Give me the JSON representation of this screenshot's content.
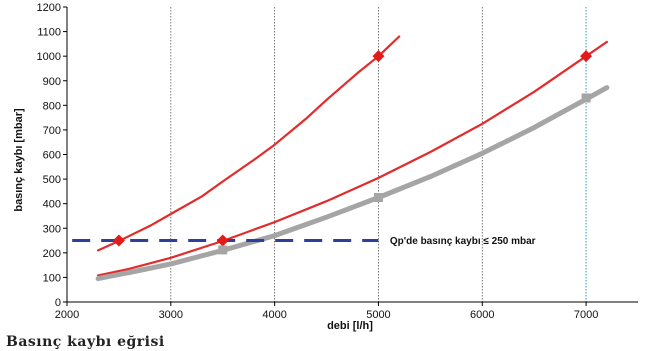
{
  "chart_data": {
    "type": "line",
    "xlabel": "debi [l/h]",
    "ylabel": "basınç kaybı [mbar]",
    "xlim": [
      2000,
      7500
    ],
    "ylim": [
      0,
      1200
    ],
    "xticks": [
      2000,
      3000,
      4000,
      5000,
      6000,
      7000
    ],
    "yticks": [
      0,
      100,
      200,
      300,
      400,
      500,
      600,
      700,
      800,
      900,
      1000,
      1100,
      1200
    ],
    "grid": {
      "vertical": true,
      "horizontal": false
    },
    "colors": {
      "red": "#e32b2b",
      "gray": "#a5a5a5",
      "blue": "#2c3f9a",
      "marker": "#e31a1a",
      "vline": "#3a9bc7"
    },
    "series": [
      {
        "color": "red",
        "x": [
          2300,
          2500,
          2800,
          3000,
          3300,
          3500,
          3800,
          4000,
          4300,
          4500,
          4800,
          5000,
          5200
        ],
        "y": [
          210,
          248,
          310,
          358,
          430,
          490,
          578,
          640,
          745,
          822,
          932,
          1000,
          1080
        ]
      },
      {
        "color": "red",
        "x": [
          2300,
          2600,
          3000,
          3500,
          4000,
          4500,
          5000,
          5500,
          6000,
          6500,
          7000,
          7200
        ],
        "y": [
          108,
          135,
          180,
          248,
          325,
          410,
          505,
          610,
          725,
          855,
          1000,
          1058
        ]
      },
      {
        "color": "gray",
        "x": [
          2300,
          2600,
          3000,
          3500,
          4000,
          4500,
          5000,
          5500,
          6000,
          6500,
          7000,
          7200
        ],
        "y": [
          95,
          120,
          155,
          210,
          270,
          345,
          425,
          510,
          605,
          710,
          825,
          872
        ]
      }
    ],
    "markers": [
      {
        "x": 2500,
        "y": 250,
        "shape": "diamond",
        "color": "marker"
      },
      {
        "x": 3500,
        "y": 250,
        "shape": "diamond",
        "color": "marker"
      },
      {
        "x": 5000,
        "y": 1000,
        "shape": "diamond",
        "color": "marker"
      },
      {
        "x": 7000,
        "y": 1000,
        "shape": "diamond",
        "color": "marker"
      },
      {
        "x": 3500,
        "y": 212,
        "shape": "square",
        "color": "gray"
      },
      {
        "x": 5000,
        "y": 425,
        "shape": "square",
        "color": "gray"
      },
      {
        "x": 7000,
        "y": 830,
        "shape": "square",
        "color": "gray"
      }
    ],
    "threshold": {
      "y": 250,
      "x_from": 2050,
      "x_to": 5000,
      "style": "dashed",
      "color": "blue"
    },
    "reference_line": {
      "x": 7000,
      "style": "dotted",
      "color": "vline"
    },
    "annotations": [
      {
        "text": "Qp'de basınç kaybı ≤ 250 mbar",
        "x": 5110,
        "y": 250
      }
    ],
    "caption": "Basınç kaybı eğrisi"
  }
}
